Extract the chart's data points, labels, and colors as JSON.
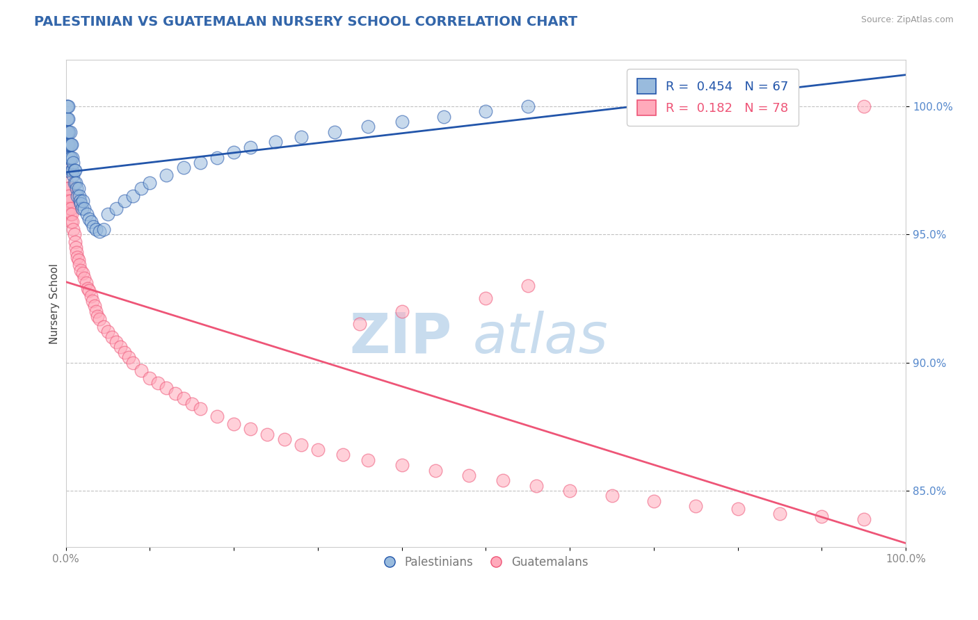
{
  "title": "PALESTINIAN VS GUATEMALAN NURSERY SCHOOL CORRELATION CHART",
  "source": "Source: ZipAtlas.com",
  "ylabel": "Nursery School",
  "legend_label1": "Palestinians",
  "legend_label2": "Guatemalans",
  "r1": 0.454,
  "n1": 67,
  "r2": 0.182,
  "n2": 78,
  "color_blue": "#99BBDD",
  "color_pink": "#FFAABB",
  "color_blue_line": "#2255AA",
  "color_pink_line": "#EE5577",
  "color_title": "#3366AA",
  "color_grid": "#BBBBBB",
  "color_source": "#999999",
  "color_ytick": "#5588CC",
  "watermark_zip": "ZIP",
  "watermark_atlas": "atlas",
  "watermark_color_zip": "#C8DCEE",
  "watermark_color_atlas": "#C8DCEE",
  "xlim": [
    0.0,
    1.0
  ],
  "ylim": [
    0.828,
    1.018
  ],
  "ytick_values": [
    0.85,
    0.9,
    0.95,
    1.0
  ],
  "palestinians_x": [
    0.001,
    0.001,
    0.001,
    0.001,
    0.001,
    0.002,
    0.002,
    0.002,
    0.002,
    0.003,
    0.003,
    0.003,
    0.003,
    0.004,
    0.004,
    0.004,
    0.005,
    0.005,
    0.005,
    0.006,
    0.006,
    0.007,
    0.007,
    0.008,
    0.008,
    0.009,
    0.009,
    0.01,
    0.01,
    0.011,
    0.012,
    0.013,
    0.014,
    0.015,
    0.016,
    0.017,
    0.018,
    0.019,
    0.02,
    0.022,
    0.025,
    0.028,
    0.03,
    0.033,
    0.036,
    0.04,
    0.045,
    0.05,
    0.06,
    0.07,
    0.08,
    0.09,
    0.1,
    0.12,
    0.14,
    0.16,
    0.18,
    0.2,
    0.22,
    0.25,
    0.28,
    0.32,
    0.36,
    0.4,
    0.45,
    0.5,
    0.55
  ],
  "palestinians_y": [
    0.99,
    0.995,
    1.0,
    0.985,
    0.975,
    0.995,
    1.0,
    0.99,
    0.985,
    0.995,
    1.0,
    0.99,
    0.985,
    0.99,
    0.985,
    0.98,
    0.99,
    0.985,
    0.98,
    0.985,
    0.98,
    0.985,
    0.975,
    0.98,
    0.975,
    0.978,
    0.973,
    0.975,
    0.97,
    0.975,
    0.97,
    0.968,
    0.965,
    0.968,
    0.965,
    0.963,
    0.962,
    0.96,
    0.963,
    0.96,
    0.958,
    0.956,
    0.955,
    0.953,
    0.952,
    0.951,
    0.952,
    0.958,
    0.96,
    0.963,
    0.965,
    0.968,
    0.97,
    0.973,
    0.976,
    0.978,
    0.98,
    0.982,
    0.984,
    0.986,
    0.988,
    0.99,
    0.992,
    0.994,
    0.996,
    0.998,
    1.0
  ],
  "guatemalans_x": [
    0.001,
    0.001,
    0.002,
    0.002,
    0.002,
    0.003,
    0.003,
    0.004,
    0.004,
    0.005,
    0.005,
    0.006,
    0.006,
    0.007,
    0.008,
    0.009,
    0.01,
    0.011,
    0.012,
    0.013,
    0.014,
    0.015,
    0.016,
    0.018,
    0.02,
    0.022,
    0.024,
    0.026,
    0.028,
    0.03,
    0.032,
    0.034,
    0.036,
    0.038,
    0.04,
    0.045,
    0.05,
    0.055,
    0.06,
    0.065,
    0.07,
    0.075,
    0.08,
    0.09,
    0.1,
    0.11,
    0.12,
    0.13,
    0.14,
    0.15,
    0.16,
    0.18,
    0.2,
    0.22,
    0.24,
    0.26,
    0.28,
    0.3,
    0.33,
    0.36,
    0.4,
    0.44,
    0.48,
    0.52,
    0.56,
    0.6,
    0.65,
    0.7,
    0.75,
    0.8,
    0.85,
    0.9,
    0.95,
    0.95,
    0.5,
    0.55,
    0.4,
    0.35
  ],
  "guatemalans_y": [
    0.975,
    0.97,
    0.975,
    0.968,
    0.963,
    0.968,
    0.963,
    0.965,
    0.96,
    0.963,
    0.958,
    0.96,
    0.955,
    0.958,
    0.955,
    0.952,
    0.95,
    0.947,
    0.945,
    0.943,
    0.941,
    0.94,
    0.938,
    0.936,
    0.935,
    0.933,
    0.931,
    0.929,
    0.928,
    0.926,
    0.924,
    0.922,
    0.92,
    0.918,
    0.917,
    0.914,
    0.912,
    0.91,
    0.908,
    0.906,
    0.904,
    0.902,
    0.9,
    0.897,
    0.894,
    0.892,
    0.89,
    0.888,
    0.886,
    0.884,
    0.882,
    0.879,
    0.876,
    0.874,
    0.872,
    0.87,
    0.868,
    0.866,
    0.864,
    0.862,
    0.86,
    0.858,
    0.856,
    0.854,
    0.852,
    0.85,
    0.848,
    0.846,
    0.844,
    0.843,
    0.841,
    0.84,
    0.839,
    1.0,
    0.925,
    0.93,
    0.92,
    0.915
  ]
}
